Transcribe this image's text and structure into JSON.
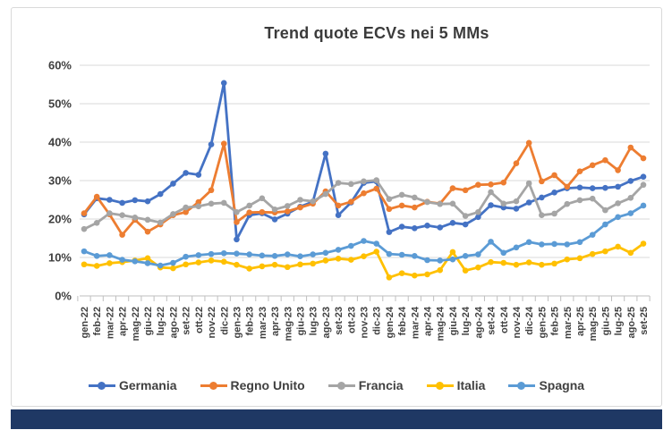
{
  "page": {
    "background": "#ffffff",
    "bottom_bar_color": "#1f3864"
  },
  "chart_data": {
    "type": "line",
    "title": "Trend quote ECVs nei 5 MMs",
    "xlabel": "",
    "ylabel": "",
    "grid": true,
    "legend_position": "bottom",
    "y_axis": {
      "min": 0,
      "max": 60,
      "step": 10,
      "tick_labels": [
        "0%",
        "10%",
        "20%",
        "30%",
        "40%",
        "50%",
        "60%"
      ]
    },
    "categories": [
      "gen-22",
      "feb-22",
      "mar-22",
      "apr-22",
      "mag-22",
      "giu-22",
      "lug-22",
      "ago-22",
      "set-22",
      "ott-22",
      "nov-22",
      "dic-22",
      "gen-23",
      "feb-23",
      "mar-23",
      "apr-23",
      "mag-23",
      "giu-23",
      "lug-23",
      "ago-23",
      "set-23",
      "ott-23",
      "nov-23",
      "dic-23",
      "gen-24",
      "feb-24",
      "mar-24",
      "apr-24",
      "mag-24",
      "giu-24",
      "lug-24",
      "ago-24",
      "set-24",
      "ott-24",
      "nov-24",
      "dic-24",
      "gen-25",
      "feb-25",
      "mar-25",
      "apr-25",
      "mag-25",
      "giu-25",
      "lug-25",
      "ago-25",
      "set-25"
    ],
    "series": [
      {
        "name": "Germania",
        "color": "#4472C4",
        "values": [
          21.2,
          25.4,
          25.0,
          24.2,
          24.9,
          24.6,
          26.5,
          29.2,
          32.0,
          31.5,
          39.4,
          55.4,
          14.7,
          21.0,
          21.5,
          19.9,
          21.4,
          23.2,
          24.5,
          37.0,
          21.0,
          24.3,
          29.4,
          29.8,
          16.6,
          18.0,
          17.6,
          18.3,
          17.8,
          19.0,
          18.6,
          20.5,
          23.6,
          23.0,
          22.7,
          24.3,
          25.6,
          26.9,
          28.0,
          28.2,
          28.0,
          28.1,
          28.4,
          29.9,
          31.0
        ]
      },
      {
        "name": "Regno Unito",
        "color": "#ED7D31",
        "values": [
          21.5,
          25.8,
          21.2,
          15.9,
          19.8,
          16.7,
          18.6,
          21.0,
          21.8,
          24.4,
          27.5,
          39.6,
          19.2,
          21.7,
          21.8,
          21.7,
          22.0,
          23.0,
          24.0,
          27.2,
          23.5,
          24.5,
          26.7,
          27.9,
          22.6,
          23.5,
          23.0,
          24.5,
          24.0,
          28.0,
          27.5,
          28.9,
          29.0,
          29.5,
          34.5,
          39.8,
          29.8,
          31.4,
          28.4,
          32.4,
          34.0,
          35.3,
          32.7,
          38.6,
          35.8
        ]
      },
      {
        "name": "Francia",
        "color": "#A5A5A5",
        "values": [
          17.4,
          19.0,
          21.5,
          21.0,
          20.4,
          19.8,
          19.1,
          21.3,
          23.0,
          23.3,
          24.0,
          24.2,
          21.8,
          23.5,
          25.4,
          22.5,
          23.4,
          25.0,
          24.6,
          26.5,
          29.4,
          29.1,
          29.8,
          30.1,
          25.2,
          26.3,
          25.6,
          24.4,
          23.9,
          24.0,
          20.8,
          21.8,
          27.0,
          24.0,
          24.6,
          29.3,
          21.0,
          21.4,
          23.9,
          24.9,
          25.3,
          22.3,
          24.1,
          25.5,
          28.9
        ]
      },
      {
        "name": "Italia",
        "color": "#FFC000",
        "values": [
          8.2,
          7.8,
          8.5,
          8.8,
          9.2,
          9.8,
          7.4,
          7.2,
          8.2,
          8.7,
          9.2,
          8.9,
          8.1,
          7.1,
          7.7,
          8.1,
          7.5,
          8.2,
          8.4,
          9.2,
          9.7,
          9.4,
          10.3,
          11.5,
          4.8,
          5.9,
          5.3,
          5.6,
          6.7,
          11.4,
          6.6,
          7.4,
          8.8,
          8.6,
          8.1,
          8.7,
          8.1,
          8.4,
          9.5,
          9.8,
          10.9,
          11.6,
          12.8,
          11.2,
          13.6
        ]
      },
      {
        "name": "Spagna",
        "color": "#5B9BD5",
        "values": [
          11.6,
          10.4,
          10.6,
          9.4,
          9.0,
          8.5,
          7.9,
          8.6,
          10.2,
          10.6,
          10.9,
          11.1,
          11.0,
          10.8,
          10.5,
          10.4,
          10.8,
          10.3,
          10.8,
          11.2,
          12.0,
          13.0,
          14.3,
          13.6,
          10.9,
          10.7,
          10.4,
          9.3,
          9.2,
          9.5,
          10.4,
          10.8,
          14.1,
          11.2,
          12.6,
          14.0,
          13.4,
          13.5,
          13.4,
          14.0,
          15.9,
          18.6,
          20.5,
          21.5,
          23.5
        ]
      }
    ]
  }
}
